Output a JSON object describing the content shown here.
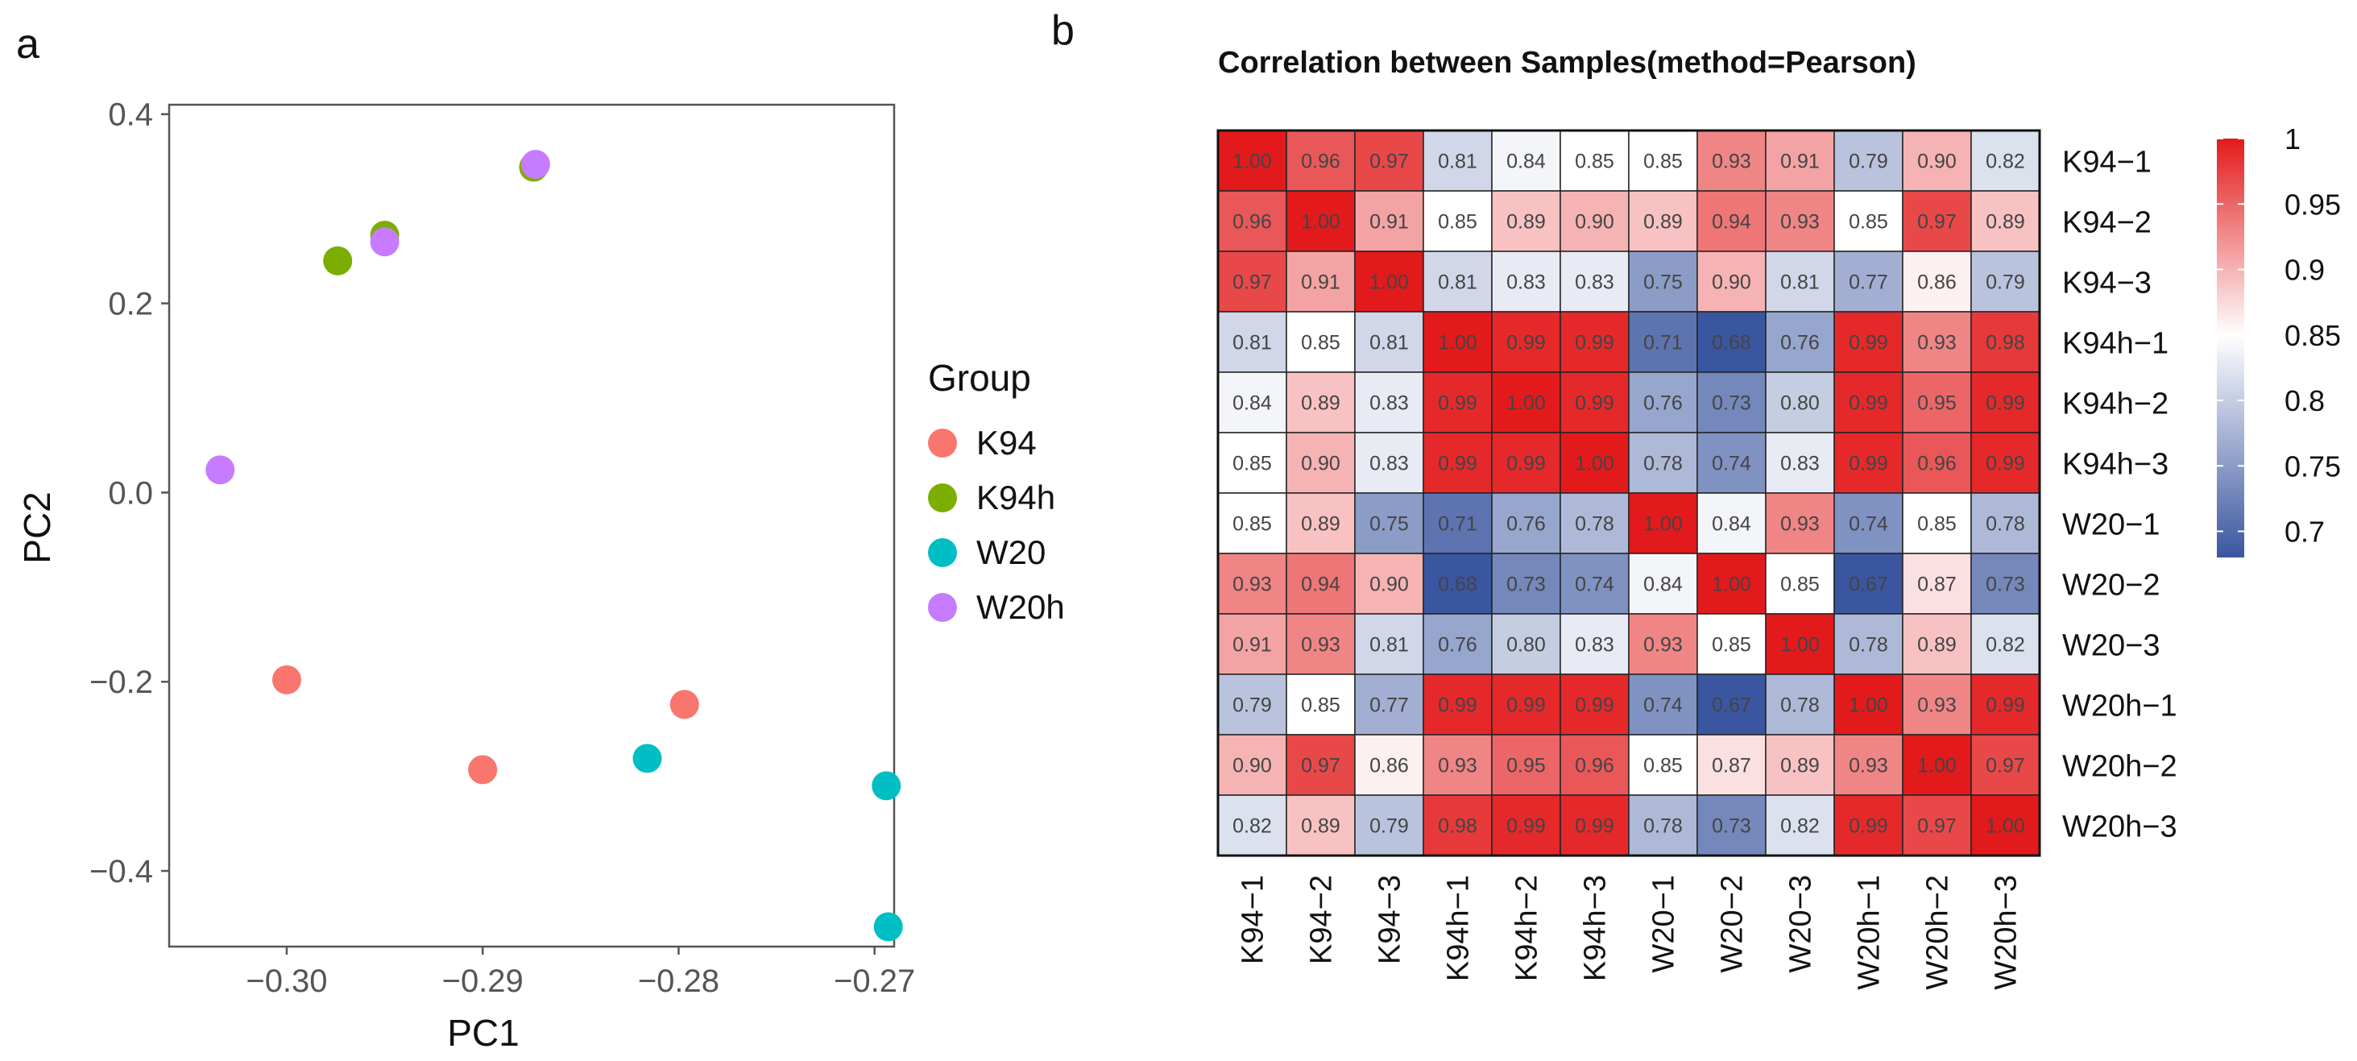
{
  "panel_labels": {
    "a": "a",
    "b": "b"
  },
  "legend": {
    "title": "Group"
  },
  "colorbar": {
    "ticks": [
      "1",
      "0.95",
      "0.9",
      "0.85",
      "0.8",
      "0.75",
      "0.7"
    ],
    "tick_values": [
      1,
      0.95,
      0.9,
      0.85,
      0.8,
      0.75,
      0.7
    ]
  },
  "chart_data": [
    {
      "type": "scatter",
      "title": "",
      "xlabel": "PC1",
      "ylabel": "PC2",
      "xlim": [
        -0.306,
        -0.269
      ],
      "ylim": [
        -0.48,
        0.41
      ],
      "x_ticks": [
        -0.3,
        -0.29,
        -0.28,
        -0.27
      ],
      "x_tick_labels": [
        "−0.30",
        "−0.29",
        "−0.28",
        "−0.27"
      ],
      "y_ticks": [
        0.4,
        0.2,
        0.0,
        -0.2,
        -0.4
      ],
      "y_tick_labels": [
        "0.4",
        "0.2",
        "0.0",
        "−0.2",
        "−0.4"
      ],
      "grid": false,
      "legend_position": "right",
      "series": [
        {
          "name": "K94",
          "color": "#F8766D",
          "points": [
            [
              -0.3,
              -0.198
            ],
            [
              -0.29,
              -0.293
            ],
            [
              -0.2797,
              -0.224
            ]
          ]
        },
        {
          "name": "K94h",
          "color": "#7CAE00",
          "points": [
            [
              -0.2974,
              0.245
            ],
            [
              -0.295,
              0.272
            ],
            [
              -0.2874,
              0.344
            ]
          ]
        },
        {
          "name": "W20",
          "color": "#00BFC4",
          "points": [
            [
              -0.2816,
              -0.281
            ],
            [
              -0.2694,
              -0.31
            ],
            [
              -0.2693,
              -0.459
            ]
          ]
        },
        {
          "name": "W20h",
          "color": "#C77CFF",
          "points": [
            [
              -0.3034,
              0.024
            ],
            [
              -0.295,
              0.265
            ],
            [
              -0.2873,
              0.347
            ]
          ]
        }
      ]
    },
    {
      "type": "heatmap",
      "title": "Correlation between Samples(method=Pearson)",
      "labels": [
        "K94−1",
        "K94−2",
        "K94−3",
        "K94h−1",
        "K94h−2",
        "K94h−3",
        "W20−1",
        "W20−2",
        "W20−3",
        "W20h−1",
        "W20h−2",
        "W20h−3"
      ],
      "value_range": [
        0.68,
        1.0
      ],
      "color_low": "#3A56A0",
      "color_mid": "#FFFFFF",
      "color_high": "#E31A1C",
      "midpoint": 0.85,
      "matrix": [
        [
          "1.00",
          "0.96",
          "0.97",
          "0.81",
          "0.84",
          "0.85",
          "0.85",
          "0.93",
          "0.91",
          "0.79",
          "0.90",
          "0.82"
        ],
        [
          "0.96",
          "1.00",
          "0.91",
          "0.85",
          "0.89",
          "0.90",
          "0.89",
          "0.94",
          "0.93",
          "0.85",
          "0.97",
          "0.89"
        ],
        [
          "0.97",
          "0.91",
          "1.00",
          "0.81",
          "0.83",
          "0.83",
          "0.75",
          "0.90",
          "0.81",
          "0.77",
          "0.86",
          "0.79"
        ],
        [
          "0.81",
          "0.85",
          "0.81",
          "1.00",
          "0.99",
          "0.99",
          "0.71",
          "0.68",
          "0.76",
          "0.99",
          "0.93",
          "0.98"
        ],
        [
          "0.84",
          "0.89",
          "0.83",
          "0.99",
          "1.00",
          "0.99",
          "0.76",
          "0.73",
          "0.80",
          "0.99",
          "0.95",
          "0.99"
        ],
        [
          "0.85",
          "0.90",
          "0.83",
          "0.99",
          "0.99",
          "1.00",
          "0.78",
          "0.74",
          "0.83",
          "0.99",
          "0.96",
          "0.99"
        ],
        [
          "0.85",
          "0.89",
          "0.75",
          "0.71",
          "0.76",
          "0.78",
          "1.00",
          "0.84",
          "0.93",
          "0.74",
          "0.85",
          "0.78"
        ],
        [
          "0.93",
          "0.94",
          "0.90",
          "0.68",
          "0.73",
          "0.74",
          "0.84",
          "1.00",
          "0.85",
          "0.67",
          "0.87",
          "0.73"
        ],
        [
          "0.91",
          "0.93",
          "0.81",
          "0.76",
          "0.80",
          "0.83",
          "0.93",
          "0.85",
          "1.00",
          "0.78",
          "0.89",
          "0.82"
        ],
        [
          "0.79",
          "0.85",
          "0.77",
          "0.99",
          "0.99",
          "0.99",
          "0.74",
          "0.67",
          "0.78",
          "1.00",
          "0.93",
          "0.99"
        ],
        [
          "0.90",
          "0.97",
          "0.86",
          "0.93",
          "0.95",
          "0.96",
          "0.85",
          "0.87",
          "0.89",
          "0.93",
          "1.00",
          "0.97"
        ],
        [
          "0.82",
          "0.89",
          "0.79",
          "0.98",
          "0.99",
          "0.99",
          "0.78",
          "0.73",
          "0.82",
          "0.99",
          "0.97",
          "1.00"
        ]
      ]
    }
  ]
}
